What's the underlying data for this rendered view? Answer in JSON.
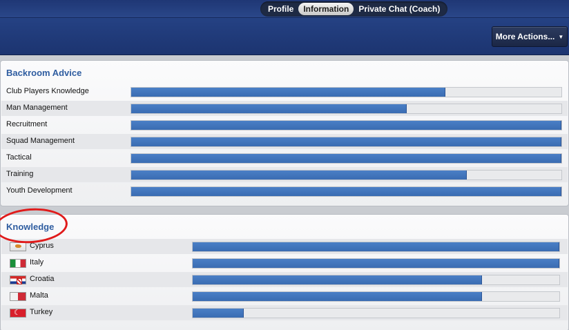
{
  "header": {
    "tabs": [
      {
        "label": "Profile",
        "active": false
      },
      {
        "label": "Information",
        "active": true
      },
      {
        "label": "Private Chat (Coach)",
        "active": false
      }
    ],
    "more_actions_label": "More Actions...",
    "more_actions_caret": "▼"
  },
  "backroom_advice": {
    "title": "Backroom Advice",
    "rows": [
      {
        "label": "Club Players Knowledge",
        "value": 0.73
      },
      {
        "label": "Man Management",
        "value": 0.64
      },
      {
        "label": "Recruitment",
        "value": 1.0
      },
      {
        "label": "Squad Management",
        "value": 1.0
      },
      {
        "label": "Tactical",
        "value": 1.0
      },
      {
        "label": "Training",
        "value": 0.78
      },
      {
        "label": "Youth Development",
        "value": 1.0
      }
    ]
  },
  "knowledge": {
    "title": "Knowledge",
    "rows": [
      {
        "label": "Cyprus",
        "flag": "flag-cyprus-icon",
        "value": 1.0
      },
      {
        "label": "Italy",
        "flag": "flag-italy-icon",
        "value": 1.0
      },
      {
        "label": "Croatia",
        "flag": "flag-croatia-icon",
        "value": 0.79
      },
      {
        "label": "Malta",
        "flag": "flag-malta-icon",
        "value": 0.79
      },
      {
        "label": "Turkey",
        "flag": "flag-turkey-icon",
        "value": 0.14
      }
    ]
  },
  "colors": {
    "accent": "#2f5da0",
    "bar_fill": "#3a6cb2",
    "annotation_circle": "#e01b1b"
  }
}
